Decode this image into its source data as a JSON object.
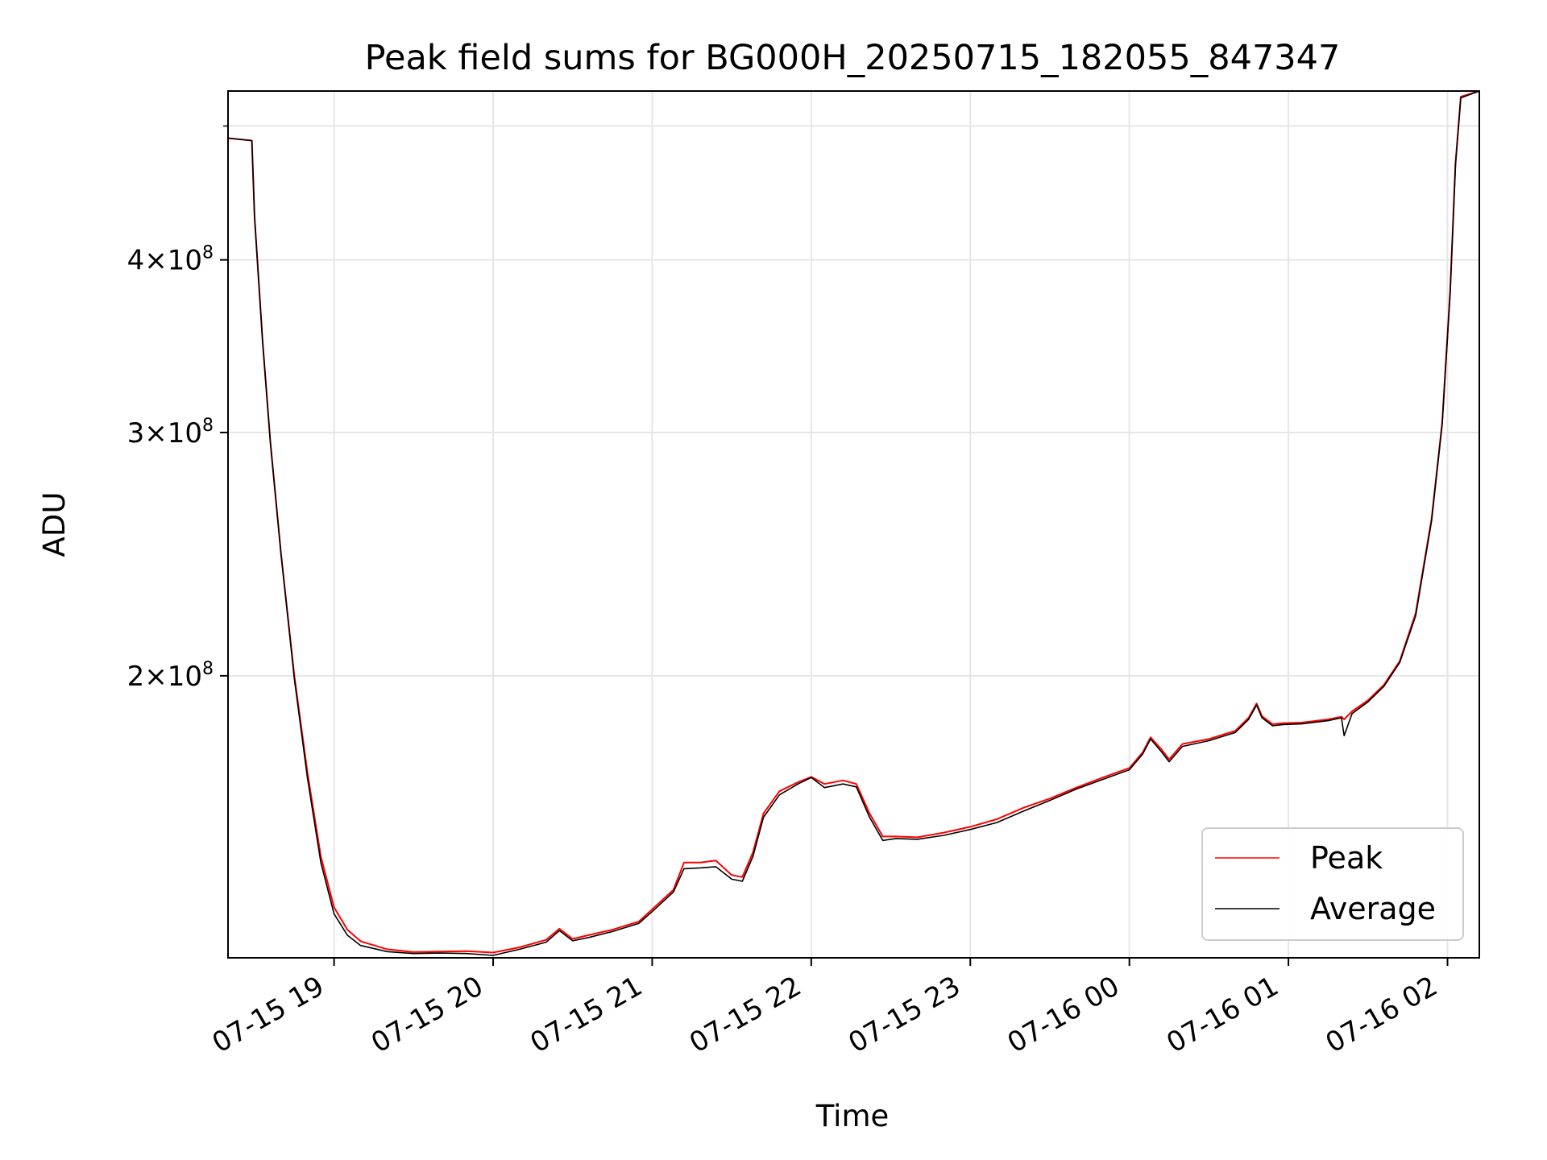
{
  "chart_data": {
    "type": "line",
    "title": "Peak field sums for BG000H_20250715_182055_847347",
    "xlabel": "Time",
    "ylabel": "ADU",
    "y_scale": "log",
    "xlim": [
      "2025-07-15 18:20",
      "2025-07-16 02:12"
    ],
    "ylim": [
      125000000,
      530000000
    ],
    "x_ticks": [
      "07-15 19",
      "07-15 20",
      "07-15 21",
      "07-15 22",
      "07-15 23",
      "07-16 00",
      "07-16 01",
      "07-16 02"
    ],
    "y_ticks": [
      {
        "value": 200000000,
        "label_base": "2",
        "label_exp": "8"
      },
      {
        "value": 300000000,
        "label_base": "3",
        "label_exp": "8"
      },
      {
        "value": 400000000,
        "label_base": "4",
        "label_exp": "8"
      }
    ],
    "minor_y_ticks": [
      500000000
    ],
    "grid": true,
    "legend_position": "lower-right",
    "series": [
      {
        "name": "Peak",
        "color": "#ff0000",
        "points": [
          [
            "2025-07-15 18:20",
            490000000
          ],
          [
            "2025-07-15 18:29",
            488000000
          ],
          [
            "2025-07-15 18:30",
            430000000
          ],
          [
            "2025-07-15 18:33",
            350000000
          ],
          [
            "2025-07-15 18:36",
            295000000
          ],
          [
            "2025-07-15 18:40",
            245000000
          ],
          [
            "2025-07-15 18:45",
            200000000
          ],
          [
            "2025-07-15 18:50",
            170000000
          ],
          [
            "2025-07-15 18:55",
            148000000
          ],
          [
            "2025-07-15 19:00",
            136000000
          ],
          [
            "2025-07-15 19:05",
            131000000
          ],
          [
            "2025-07-15 19:10",
            128500000
          ],
          [
            "2025-07-15 19:20",
            126800000
          ],
          [
            "2025-07-15 19:30",
            126200000
          ],
          [
            "2025-07-15 19:40",
            126300000
          ],
          [
            "2025-07-15 19:50",
            126400000
          ],
          [
            "2025-07-15 20:00",
            126100000
          ],
          [
            "2025-07-15 20:10",
            127200000
          ],
          [
            "2025-07-15 20:20",
            128800000
          ],
          [
            "2025-07-15 20:25",
            131200000
          ],
          [
            "2025-07-15 20:30",
            129000000
          ],
          [
            "2025-07-15 20:36",
            129800000
          ],
          [
            "2025-07-15 20:45",
            131000000
          ],
          [
            "2025-07-15 20:55",
            132800000
          ],
          [
            "2025-07-15 21:00",
            135500000
          ],
          [
            "2025-07-15 21:08",
            140000000
          ],
          [
            "2025-07-15 21:12",
            146500000
          ],
          [
            "2025-07-15 21:18",
            146500000
          ],
          [
            "2025-07-15 21:24",
            147000000
          ],
          [
            "2025-07-15 21:30",
            143500000
          ],
          [
            "2025-07-15 21:34",
            143000000
          ],
          [
            "2025-07-15 21:38",
            149000000
          ],
          [
            "2025-07-15 21:42",
            159000000
          ],
          [
            "2025-07-15 21:48",
            165000000
          ],
          [
            "2025-07-15 21:55",
            167500000
          ],
          [
            "2025-07-15 22:00",
            169000000
          ],
          [
            "2025-07-15 22:05",
            167000000
          ],
          [
            "2025-07-15 22:12",
            168000000
          ],
          [
            "2025-07-15 22:17",
            167000000
          ],
          [
            "2025-07-15 22:22",
            159000000
          ],
          [
            "2025-07-15 22:27",
            153000000
          ],
          [
            "2025-07-15 22:32",
            153000000
          ],
          [
            "2025-07-15 22:40",
            152800000
          ],
          [
            "2025-07-15 22:50",
            154000000
          ],
          [
            "2025-07-15 23:00",
            155500000
          ],
          [
            "2025-07-15 23:10",
            157500000
          ],
          [
            "2025-07-15 23:20",
            160500000
          ],
          [
            "2025-07-15 23:30",
            163000000
          ],
          [
            "2025-07-15 23:40",
            166000000
          ],
          [
            "2025-07-15 23:50",
            168800000
          ],
          [
            "2025-07-16 00:00",
            171500000
          ],
          [
            "2025-07-16 00:05",
            176000000
          ],
          [
            "2025-07-16 00:08",
            180500000
          ],
          [
            "2025-07-16 00:12",
            177000000
          ],
          [
            "2025-07-16 00:15",
            174000000
          ],
          [
            "2025-07-16 00:20",
            178500000
          ],
          [
            "2025-07-16 00:30",
            180000000
          ],
          [
            "2025-07-16 00:40",
            182500000
          ],
          [
            "2025-07-16 00:45",
            186500000
          ],
          [
            "2025-07-16 00:48",
            191000000
          ],
          [
            "2025-07-16 00:50",
            187000000
          ],
          [
            "2025-07-16 00:54",
            184500000
          ],
          [
            "2025-07-16 00:58",
            184800000
          ],
          [
            "2025-07-16 01:05",
            185000000
          ],
          [
            "2025-07-16 01:15",
            186000000
          ],
          [
            "2025-07-16 01:20",
            186800000
          ],
          [
            "2025-07-16 01:21",
            186000000
          ],
          [
            "2025-07-16 01:24",
            188500000
          ],
          [
            "2025-07-16 01:30",
            192000000
          ],
          [
            "2025-07-16 01:36",
            197000000
          ],
          [
            "2025-07-16 01:42",
            205000000
          ],
          [
            "2025-07-16 01:48",
            222000000
          ],
          [
            "2025-07-16 01:54",
            260000000
          ],
          [
            "2025-07-16 01:58",
            305000000
          ],
          [
            "2025-07-16 02:01",
            380000000
          ],
          [
            "2025-07-16 02:03",
            470000000
          ],
          [
            "2025-07-16 02:05",
            525000000
          ],
          [
            "2025-07-16 02:12",
            530000000
          ]
        ]
      },
      {
        "name": "Average",
        "color": "#000000",
        "points": [
          [
            "2025-07-15 18:20",
            490000000
          ],
          [
            "2025-07-15 18:29",
            488000000
          ],
          [
            "2025-07-15 18:30",
            430000000
          ],
          [
            "2025-07-15 18:33",
            350000000
          ],
          [
            "2025-07-15 18:36",
            295000000
          ],
          [
            "2025-07-15 18:40",
            245000000
          ],
          [
            "2025-07-15 18:45",
            199000000
          ],
          [
            "2025-07-15 18:50",
            168500000
          ],
          [
            "2025-07-15 18:55",
            146500000
          ],
          [
            "2025-07-15 19:00",
            134500000
          ],
          [
            "2025-07-15 19:05",
            129800000
          ],
          [
            "2025-07-15 19:10",
            127600000
          ],
          [
            "2025-07-15 19:20",
            126300000
          ],
          [
            "2025-07-15 19:30",
            125900000
          ],
          [
            "2025-07-15 19:40",
            126000000
          ],
          [
            "2025-07-15 19:50",
            125900000
          ],
          [
            "2025-07-15 20:00",
            125500000
          ],
          [
            "2025-07-15 20:10",
            126800000
          ],
          [
            "2025-07-15 20:20",
            128300000
          ],
          [
            "2025-07-15 20:25",
            130800000
          ],
          [
            "2025-07-15 20:30",
            128600000
          ],
          [
            "2025-07-15 20:36",
            129300000
          ],
          [
            "2025-07-15 20:45",
            130600000
          ],
          [
            "2025-07-15 20:55",
            132400000
          ],
          [
            "2025-07-15 21:00",
            135000000
          ],
          [
            "2025-07-15 21:08",
            139500000
          ],
          [
            "2025-07-15 21:12",
            145000000
          ],
          [
            "2025-07-15 21:18",
            145200000
          ],
          [
            "2025-07-15 21:24",
            145500000
          ],
          [
            "2025-07-15 21:30",
            142500000
          ],
          [
            "2025-07-15 21:34",
            142000000
          ],
          [
            "2025-07-15 21:38",
            148000000
          ],
          [
            "2025-07-15 21:42",
            158000000
          ],
          [
            "2025-07-15 21:48",
            164000000
          ],
          [
            "2025-07-15 21:55",
            167000000
          ],
          [
            "2025-07-15 22:00",
            168800000
          ],
          [
            "2025-07-15 22:05",
            166000000
          ],
          [
            "2025-07-15 22:12",
            167000000
          ],
          [
            "2025-07-15 22:17",
            166200000
          ],
          [
            "2025-07-15 22:22",
            158000000
          ],
          [
            "2025-07-15 22:27",
            152000000
          ],
          [
            "2025-07-15 22:32",
            152500000
          ],
          [
            "2025-07-15 22:40",
            152300000
          ],
          [
            "2025-07-15 22:50",
            153300000
          ],
          [
            "2025-07-15 23:00",
            154800000
          ],
          [
            "2025-07-15 23:10",
            156600000
          ],
          [
            "2025-07-15 23:20",
            159600000
          ],
          [
            "2025-07-15 23:30",
            162500000
          ],
          [
            "2025-07-15 23:40",
            165600000
          ],
          [
            "2025-07-15 23:50",
            168300000
          ],
          [
            "2025-07-16 00:00",
            171000000
          ],
          [
            "2025-07-16 00:05",
            175500000
          ],
          [
            "2025-07-16 00:08",
            180000000
          ],
          [
            "2025-07-16 00:12",
            176300000
          ],
          [
            "2025-07-16 00:15",
            173300000
          ],
          [
            "2025-07-16 00:20",
            177800000
          ],
          [
            "2025-07-16 00:30",
            179500000
          ],
          [
            "2025-07-16 00:40",
            182000000
          ],
          [
            "2025-07-16 00:45",
            186000000
          ],
          [
            "2025-07-16 00:48",
            190500000
          ],
          [
            "2025-07-16 00:50",
            186500000
          ],
          [
            "2025-07-16 00:54",
            184000000
          ],
          [
            "2025-07-16 00:58",
            184400000
          ],
          [
            "2025-07-16 01:05",
            184600000
          ],
          [
            "2025-07-16 01:15",
            185600000
          ],
          [
            "2025-07-16 01:20",
            186500000
          ],
          [
            "2025-07-16 01:21",
            181000000
          ],
          [
            "2025-07-16 01:24",
            187800000
          ],
          [
            "2025-07-16 01:30",
            191500000
          ],
          [
            "2025-07-16 01:36",
            196500000
          ],
          [
            "2025-07-16 01:42",
            204500000
          ],
          [
            "2025-07-16 01:48",
            221000000
          ],
          [
            "2025-07-16 01:54",
            259000000
          ],
          [
            "2025-07-16 01:58",
            304000000
          ],
          [
            "2025-07-16 02:01",
            378000000
          ],
          [
            "2025-07-16 02:03",
            468000000
          ],
          [
            "2025-07-16 02:05",
            524000000
          ],
          [
            "2025-07-16 02:12",
            530000000
          ]
        ]
      }
    ]
  }
}
